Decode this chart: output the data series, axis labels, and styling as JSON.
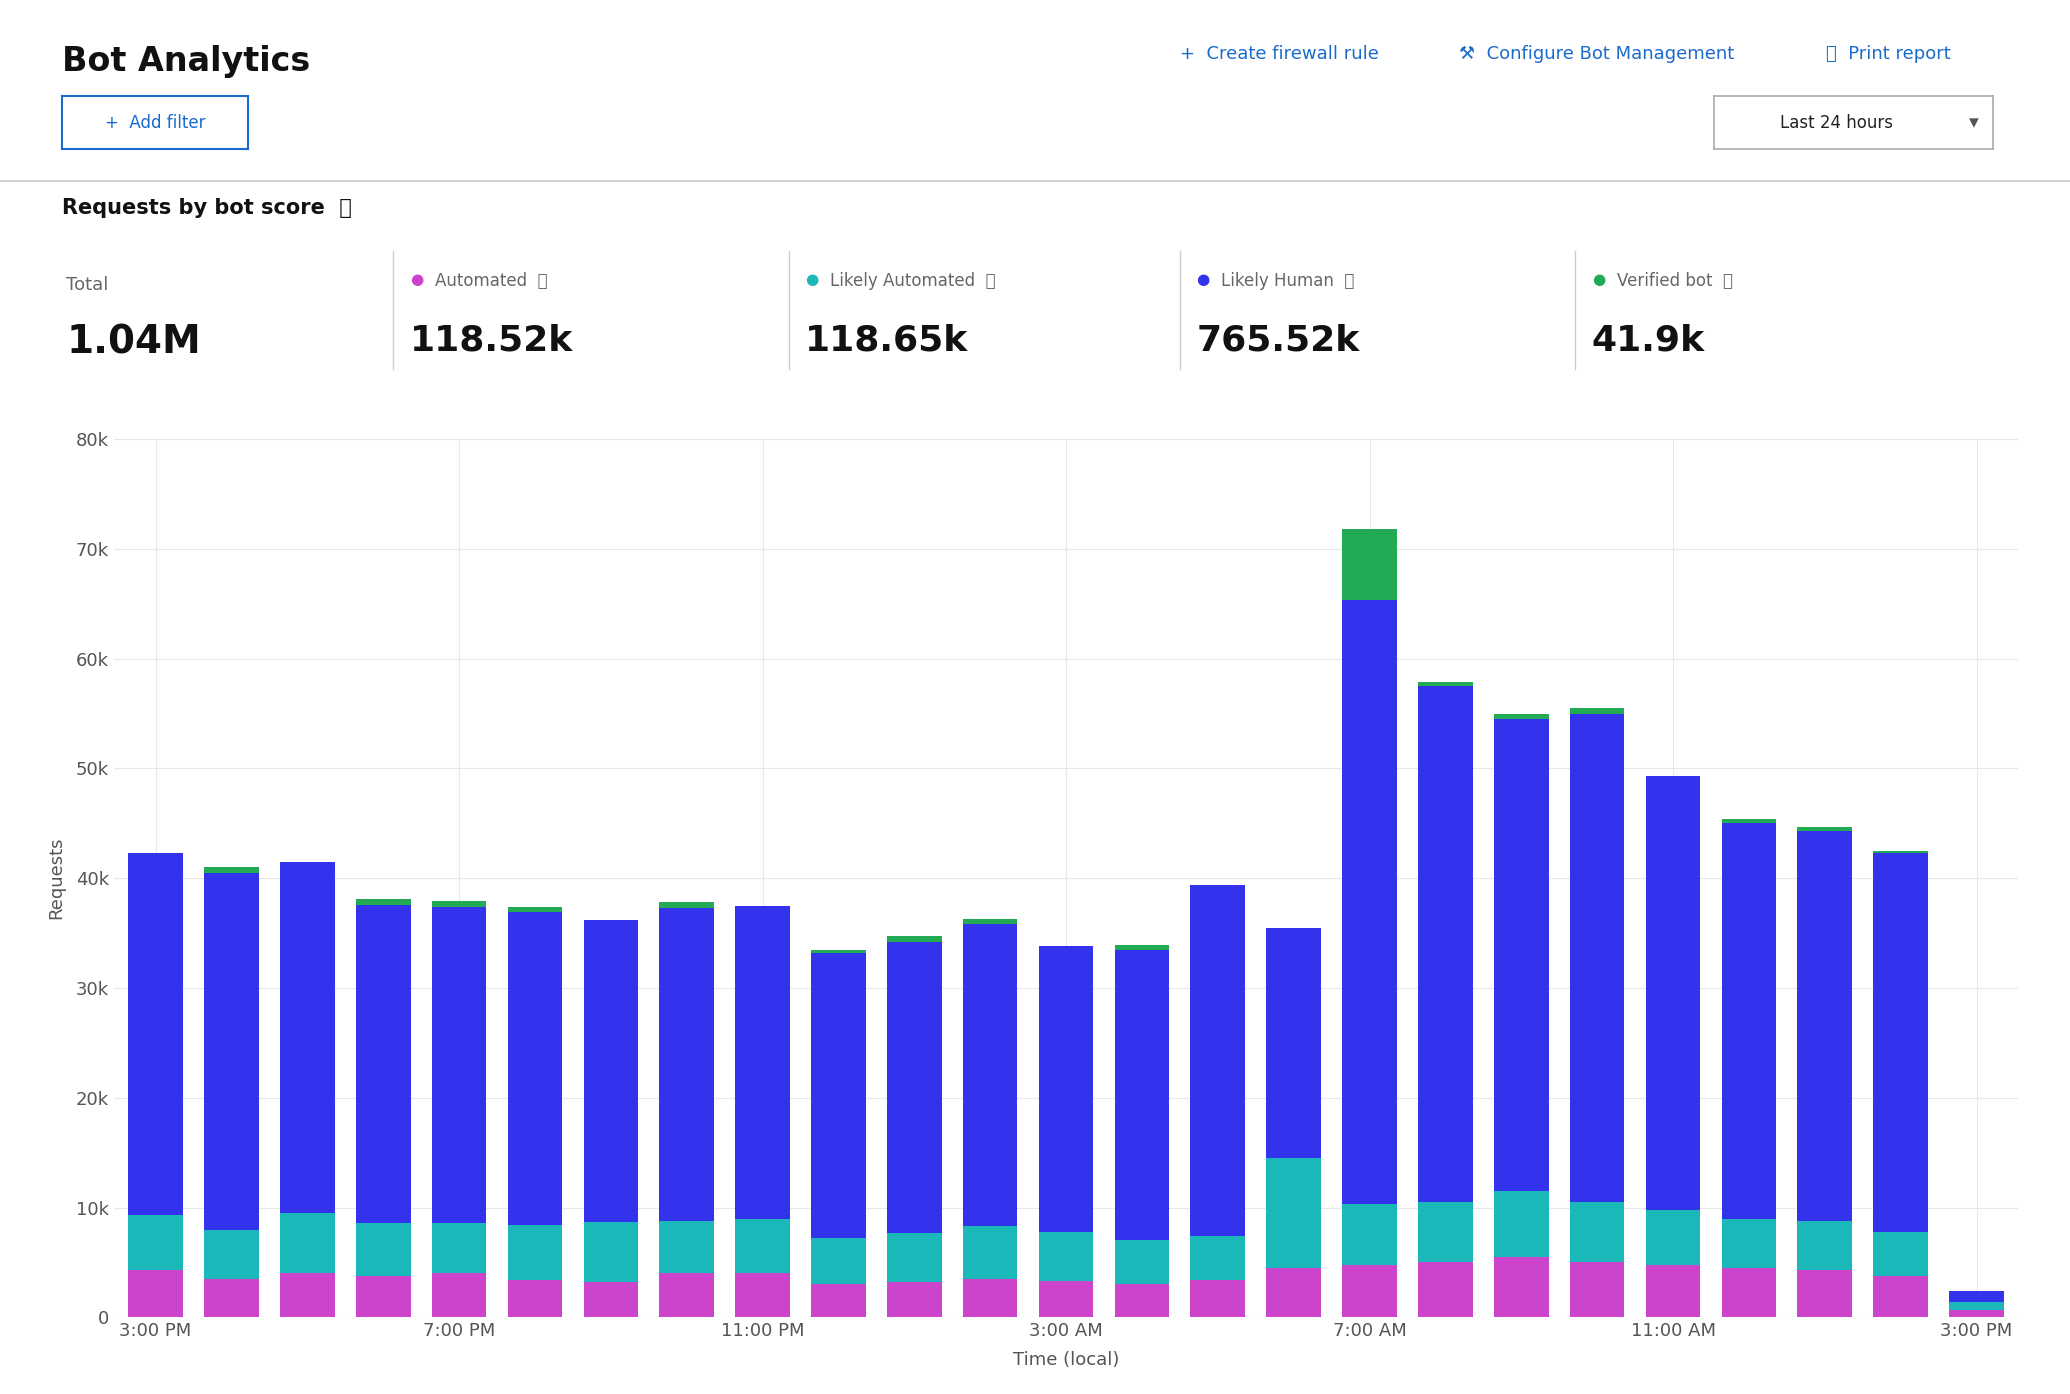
{
  "title": "Bot Analytics",
  "subtitle": "Requests by bot score",
  "total_label": "Total",
  "total_value": "1.04M",
  "stat_labels": [
    "Automated",
    "Likely Automated",
    "Likely Human",
    "Verified bot"
  ],
  "stat_values": [
    "118.52k",
    "118.65k",
    "765.52k",
    "41.9k"
  ],
  "stat_colors": [
    "#cc44cc",
    "#1ab8b8",
    "#3333ee",
    "#22aa55"
  ],
  "x_tick_labels": [
    "3:00 PM",
    "7:00 PM",
    "11:00 PM",
    "3:00 AM",
    "7:00 AM",
    "11:00 AM",
    "3:00 PM"
  ],
  "x_tick_positions": [
    0,
    4,
    8,
    12,
    16,
    20,
    24
  ],
  "automated": [
    4300,
    3500,
    4000,
    3800,
    4000,
    3400,
    3200,
    4000,
    4000,
    3000,
    3200,
    3500,
    3300,
    3000,
    3400,
    4500,
    4800,
    5000,
    5500,
    5000,
    4800,
    4500,
    4300,
    3800,
    700
  ],
  "likely_automated": [
    5000,
    4500,
    5500,
    4800,
    4600,
    5000,
    5500,
    4800,
    5000,
    4200,
    4500,
    4800,
    4500,
    4000,
    4000,
    10000,
    5500,
    5500,
    6000,
    5500,
    5000,
    4500,
    4500,
    4000,
    700
  ],
  "likely_human": [
    33000,
    32500,
    32000,
    29000,
    28800,
    28500,
    27500,
    28500,
    28500,
    26000,
    26500,
    27500,
    26000,
    26500,
    32000,
    21000,
    55000,
    47000,
    43000,
    44500,
    39500,
    36000,
    35500,
    34500,
    1000
  ],
  "verified_bot": [
    0,
    500,
    0,
    500,
    500,
    500,
    0,
    500,
    0,
    300,
    500,
    500,
    0,
    400,
    0,
    0,
    6500,
    400,
    500,
    500,
    0,
    400,
    400,
    200,
    0
  ],
  "color_automated": "#cc44cc",
  "color_likely_automated": "#1ab8b8",
  "color_likely_human": "#3333ee",
  "color_verified_bot": "#22aa55",
  "ylabel": "Requests",
  "xlabel": "Time (local)",
  "ylim": [
    0,
    80000
  ],
  "yticks": [
    0,
    10000,
    20000,
    30000,
    40000,
    50000,
    60000,
    70000,
    80000
  ],
  "ytick_labels": [
    "0",
    "10k",
    "20k",
    "30k",
    "40k",
    "50k",
    "60k",
    "70k",
    "80k"
  ],
  "bg_color": "#ffffff",
  "grid_color": "#e8e8e8",
  "header_link_color": "#1a6bcc",
  "button_border_color": "#1a6bcc",
  "button_text_color": "#1a6bcc",
  "dropdown_border_color": "#aaaaaa",
  "divider_color": "#cccccc",
  "label_color": "#666666",
  "value_color": "#111111"
}
